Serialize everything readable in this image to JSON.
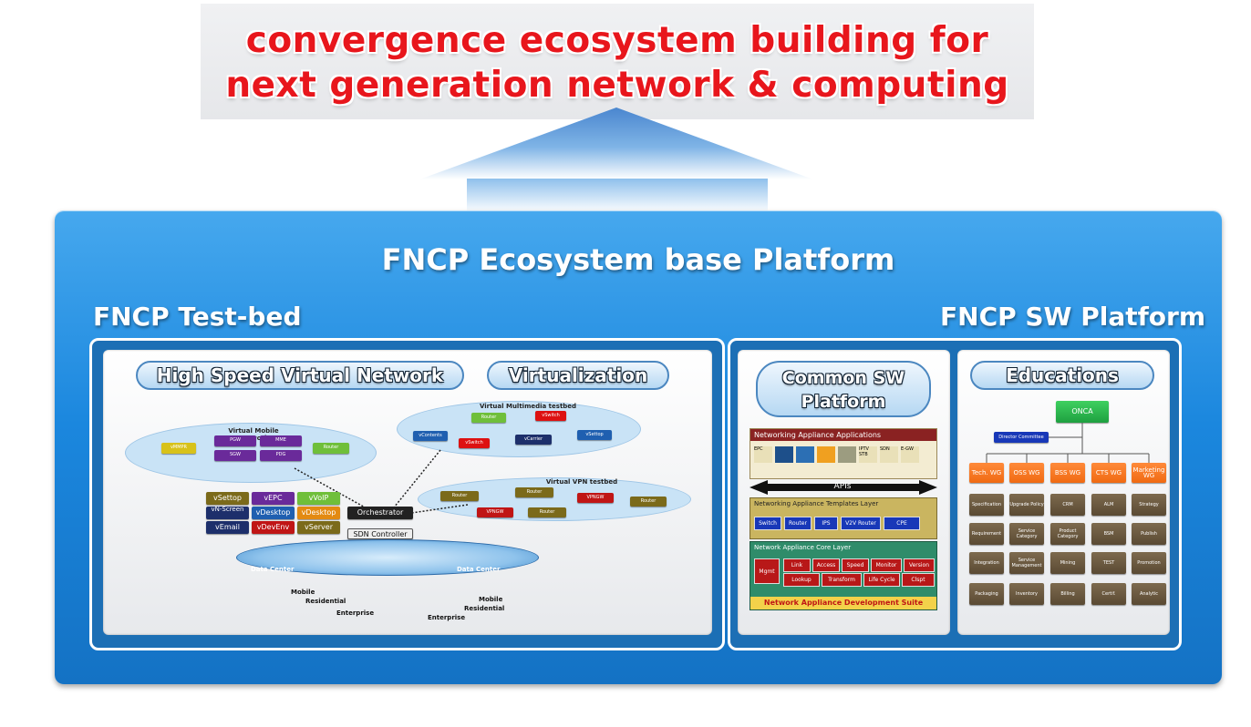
{
  "banner": {
    "line1": "convergence ecosystem building for",
    "line2": "next generation network  & computing"
  },
  "platform": {
    "title": "FNCP Ecosystem base Platform",
    "testbed_title": "FNCP Test-bed",
    "sw_platform_title": "FNCP SW Platform"
  },
  "testbed": {
    "pill_network": "High Speed Virtual Network",
    "pill_virtualization": "Virtualization",
    "mobile_cloud": {
      "title": "Virtual Mobile Network",
      "left_node": "vMMPR",
      "grid": [
        "PGW",
        "MME",
        "SGW",
        "PDG"
      ],
      "right_node": "Router"
    },
    "multimedia_cloud": {
      "title": "Virtual Multimedia testbed",
      "nodes": [
        "Router",
        "vSwitch",
        "vContents",
        "vSwitch",
        "vCarrier",
        "vSettop"
      ]
    },
    "vpn_cloud": {
      "title": "Virtual VPN testbed",
      "nodes": [
        "Router",
        "Router",
        "VPNGW",
        "VPNGW",
        "Router",
        "Router"
      ]
    },
    "vfunctions": [
      "vSettop",
      "vEPC",
      "vVoIP",
      "vN-Screen",
      "vDesktop",
      "vDesktop",
      "vEmail",
      "vDevEnv",
      "vServer"
    ],
    "orchestrator": "Orchestrator",
    "sdn_controller": "SDN Controller",
    "datacenter_left": "Data Center",
    "datacenter_right": "Data Center",
    "edge_labels": [
      "Mobile",
      "Residential",
      "Enterprise",
      "Mobile",
      "Residential",
      "Enterprise"
    ]
  },
  "common_sw": {
    "pill_line1": "Common SW",
    "pill_line2": "Platform",
    "apps_title": "Networking Appliance Applications",
    "apps_icons": [
      "EPC",
      "",
      "",
      "",
      "",
      "IPTV STB",
      "SDN",
      "E-GW"
    ],
    "apis": "APIs",
    "templates_title": "Networking  Appliance Templates Layer",
    "templates": [
      "Switch",
      "Router",
      "IPS",
      "V2V Router",
      "CPE"
    ],
    "core_title": "Network Appliance Core Layer",
    "core_left": "Mgmt",
    "core_row1": [
      "Link",
      "Access",
      "Speed",
      "Monitor",
      "Version"
    ],
    "core_row2": [
      "Lookup",
      "Transform",
      "Life Cycle",
      "Clspt"
    ],
    "suite": "Network Appliance Development Suite"
  },
  "educations": {
    "pill": "Educations",
    "top": "ONCA",
    "committee": "Director Committee",
    "wgs": [
      "Tech. WG",
      "OSS WG",
      "BSS WG",
      "CTS WG",
      "Marketing WG"
    ],
    "rows": [
      [
        "Specification",
        "Upgrade Policy",
        "CRM",
        "ALM",
        "Strategy"
      ],
      [
        "Requirement",
        "Service Category",
        "Product Category",
        "BSM",
        "Publish"
      ],
      [
        "Integration",
        "Service Management",
        "Mining",
        "TEST",
        "Promotion"
      ],
      [
        "Packaging",
        "Inventory",
        "Billing",
        "Certif.",
        "Analytic"
      ]
    ]
  },
  "colors": {
    "banner_text": "#e8161c",
    "platform_blue": "#1b87de",
    "wg_orange": "#f06a12",
    "onca_green": "#2bb24c"
  }
}
